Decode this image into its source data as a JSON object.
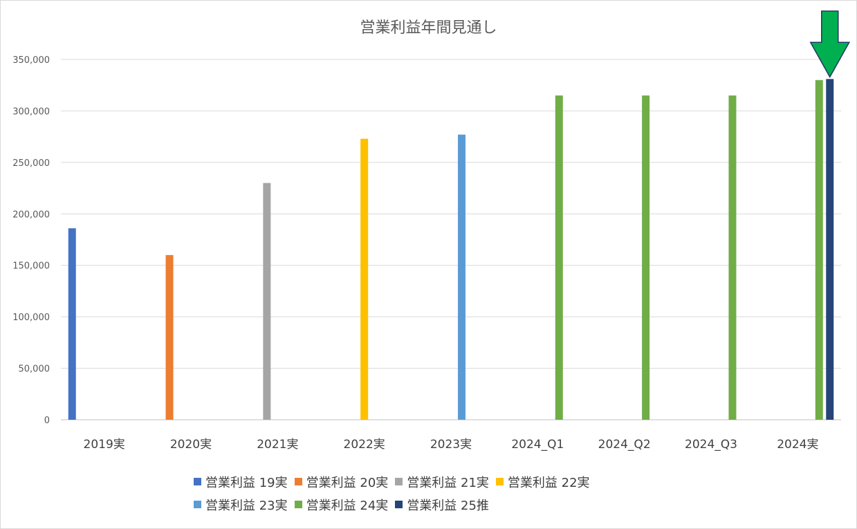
{
  "chart_data": {
    "type": "bar",
    "title": "営業利益年間見通し",
    "categories": [
      "2019実",
      "2020実",
      "2021実",
      "2022実",
      "2023実",
      "2024_Q1",
      "2024_Q2",
      "2024_Q3",
      "2024実"
    ],
    "series": [
      {
        "name": "営業利益 19実",
        "color": "#4472c4",
        "values": [
          186000,
          null,
          null,
          null,
          null,
          null,
          null,
          null,
          null
        ]
      },
      {
        "name": "営業利益 20実",
        "color": "#ed7d31",
        "values": [
          null,
          160000,
          null,
          null,
          null,
          null,
          null,
          null,
          null
        ]
      },
      {
        "name": "営業利益 21実",
        "color": "#a5a5a5",
        "values": [
          null,
          null,
          230000,
          null,
          null,
          null,
          null,
          null,
          null
        ]
      },
      {
        "name": "営業利益 22実",
        "color": "#ffc000",
        "values": [
          null,
          null,
          null,
          273000,
          null,
          null,
          null,
          null,
          null
        ]
      },
      {
        "name": "営業利益 23実",
        "color": "#5b9bd5",
        "values": [
          null,
          null,
          null,
          null,
          277000,
          null,
          null,
          null,
          null
        ]
      },
      {
        "name": "営業利益 24実",
        "color": "#70ad47",
        "values": [
          null,
          null,
          null,
          null,
          null,
          315000,
          315000,
          315000,
          330000
        ]
      },
      {
        "name": "営業利益 25推",
        "color": "#264478",
        "values": [
          null,
          null,
          null,
          null,
          null,
          null,
          null,
          null,
          331000
        ]
      }
    ],
    "ylim": [
      0,
      350000
    ],
    "yticks": [
      0,
      50000,
      100000,
      150000,
      200000,
      250000,
      300000,
      350000
    ],
    "ytick_labels": [
      "0",
      "50,000",
      "100,000",
      "150,000",
      "200,000",
      "250,000",
      "300,000",
      "350,000"
    ],
    "grid": true,
    "legend_position": "bottom",
    "annotation": {
      "type": "arrow",
      "color": "#00b050",
      "points_to": "営業利益 25推 / 2024実"
    }
  }
}
